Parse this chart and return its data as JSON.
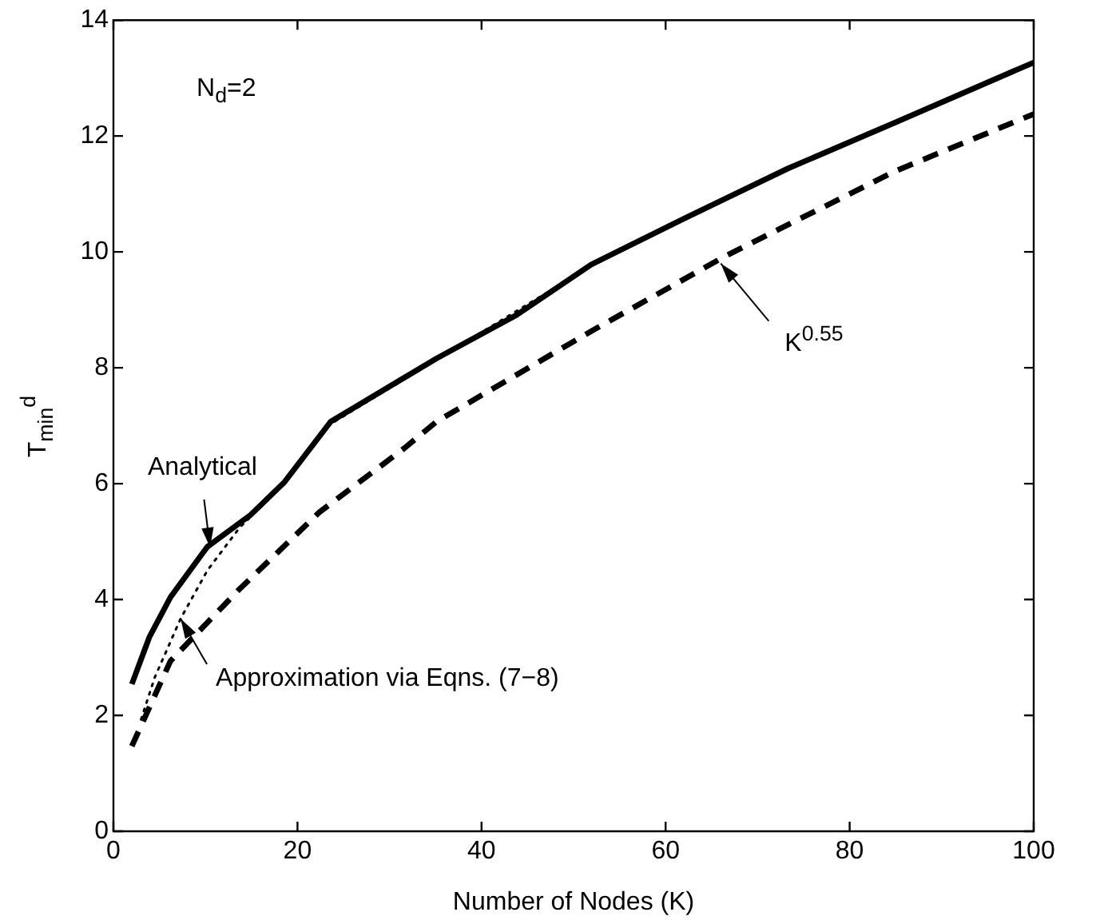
{
  "chart_data": {
    "type": "line",
    "xlabel": "Number of Nodes (K)",
    "ylabel": "T$_{min}$$^{d}$",
    "xlim": [
      0,
      100
    ],
    "xticks": [
      0,
      20,
      40,
      60,
      80,
      100
    ],
    "ylim": [
      0,
      14
    ],
    "yticks": [
      0,
      2,
      4,
      6,
      8,
      10,
      12,
      14
    ],
    "grid": false,
    "legend": false,
    "marker": "none",
    "series": [
      {
        "color": "#000000",
        "line_style": "solid",
        "x": [
          2,
          3.9,
          6.2,
          10.2,
          14.9,
          18.6,
          23.6,
          35.1,
          43.8,
          51.9,
          61.8,
          73.3,
          84.9,
          100
        ],
        "values": [
          2.54,
          3.35,
          4.04,
          4.91,
          5.46,
          6.03,
          7.07,
          8.16,
          8.91,
          9.78,
          10.56,
          11.44,
          12.23,
          13.27
        ]
      },
      {
        "color": "#000000",
        "line_style": "dotted",
        "x": [
          3,
          4.5,
          7.3,
          10.2,
          13.7,
          17.8,
          23.6,
          35.1,
          51.9,
          73.3,
          100
        ],
        "values": [
          1.93,
          2.66,
          3.67,
          4.5,
          5.24,
          5.88,
          7.03,
          8.14,
          9.76,
          11.43,
          13.26
        ]
      },
      {
        "color": "#000000",
        "line_style": "dashed",
        "x": [
          2,
          6.2,
          13.7,
          22.4,
          31.6,
          35.1,
          51.9,
          66.4,
          84.9,
          100
        ],
        "values": [
          1.47,
          2.94,
          4.18,
          5.51,
          6.61,
          7.07,
          8.63,
          9.92,
          11.39,
          12.38
        ]
      }
    ],
    "annotations": [
      "N$_{d}$=2",
      {
        "text": "Analytical",
        "x": 10.5,
        "y": 4.9
      },
      {
        "text": "Approximation via Eqns. (7−8)",
        "x": 7.3,
        "y": 3.67
      },
      {
        "text": "K$^{0.55}$",
        "x": 66,
        "y": 9.8
      }
    ]
  }
}
